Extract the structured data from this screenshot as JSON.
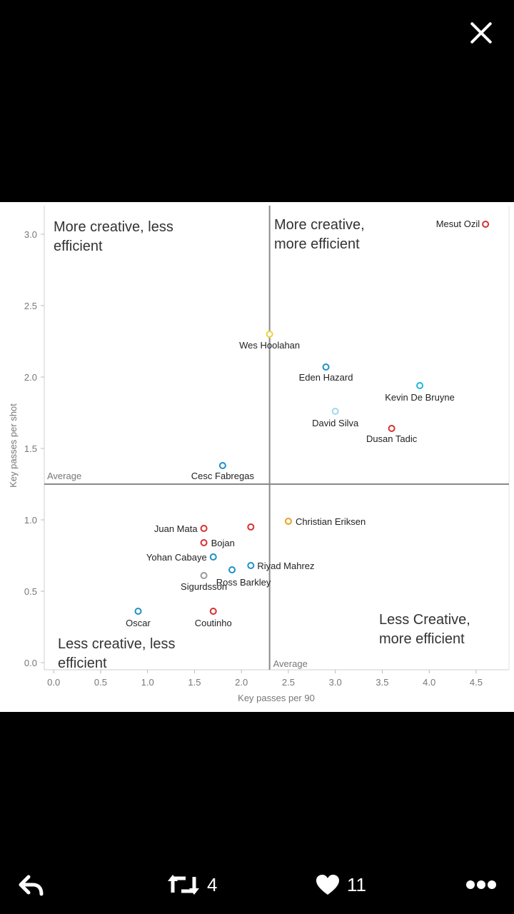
{
  "colors": {
    "red": "#d73030",
    "blue": "#1f8fc8",
    "cyan": "#21b6d8",
    "lightblue": "#9fd8ec",
    "orange": "#e8a020",
    "yellow": "#f0d040",
    "grey": "#9a9a9a"
  },
  "actions": {
    "retweet_count": "4",
    "like_count": "11"
  },
  "chart_data": {
    "type": "scatter",
    "xlabel": "Key passes per 90",
    "ylabel": "Key passes per shot",
    "xlim": [
      -0.1,
      4.85
    ],
    "ylim": [
      -0.05,
      3.2
    ],
    "xticks": [
      "0.0",
      "0.5",
      "1.0",
      "1.5",
      "2.0",
      "2.5",
      "3.0",
      "3.5",
      "4.0",
      "4.5"
    ],
    "yticks": [
      "0.0",
      "0.5",
      "1.0",
      "1.5",
      "2.0",
      "2.5",
      "3.0"
    ],
    "average_x": 2.3,
    "average_y": 1.25,
    "average_x_label": "Average",
    "average_y_label": "Average",
    "quadrants": [
      {
        "lines": [
          "More creative, less",
          "efficient"
        ]
      },
      {
        "lines": [
          "More creative,",
          "more efficient"
        ]
      },
      {
        "lines": [
          "Less creative, less",
          "efficient"
        ]
      },
      {
        "lines": [
          "Less Creative,",
          "more efficient"
        ]
      }
    ],
    "points": [
      {
        "label": "Mesut Ozil",
        "x": 4.6,
        "y": 3.07,
        "color": "red"
      },
      {
        "label": "Wes Hoolahan",
        "x": 2.3,
        "y": 2.3,
        "color": "yellow"
      },
      {
        "label": "Eden Hazard",
        "x": 2.9,
        "y": 2.07,
        "color": "blue"
      },
      {
        "label": "Kevin De Bruyne",
        "x": 3.9,
        "y": 1.94,
        "color": "cyan"
      },
      {
        "label": "David Silva",
        "x": 3.0,
        "y": 1.76,
        "color": "lightblue"
      },
      {
        "label": "Dusan Tadic",
        "x": 3.6,
        "y": 1.64,
        "color": "red"
      },
      {
        "label": "Cesc Fabregas",
        "x": 1.8,
        "y": 1.38,
        "color": "blue"
      },
      {
        "label": "Christian Eriksen",
        "x": 2.5,
        "y": 0.99,
        "color": "orange"
      },
      {
        "label": "Juan Mata",
        "x": 1.6,
        "y": 0.94,
        "color": "red"
      },
      {
        "label": "",
        "x": 2.1,
        "y": 0.95,
        "color": "red"
      },
      {
        "label": "Bojan",
        "x": 1.6,
        "y": 0.84,
        "color": "red"
      },
      {
        "label": "Yohan Cabaye",
        "x": 1.7,
        "y": 0.74,
        "color": "blue"
      },
      {
        "label": "Riyad Mahrez",
        "x": 2.1,
        "y": 0.68,
        "color": "blue"
      },
      {
        "label": "Ross Barkley",
        "x": 1.9,
        "y": 0.65,
        "color": "blue"
      },
      {
        "label": "Sigurdsson",
        "x": 1.6,
        "y": 0.61,
        "color": "grey"
      },
      {
        "label": "Oscar",
        "x": 0.9,
        "y": 0.36,
        "color": "blue"
      },
      {
        "label": "Coutinho",
        "x": 1.7,
        "y": 0.36,
        "color": "red"
      }
    ]
  }
}
